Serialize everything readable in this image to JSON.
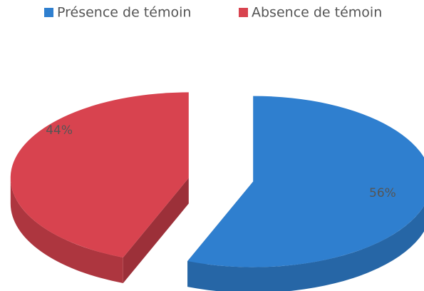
{
  "chart_data": {
    "type": "pie",
    "categories": [
      "Présence de témoin",
      "Absence de témoin"
    ],
    "values": [
      56,
      44
    ],
    "value_labels": [
      "56%",
      "44%"
    ],
    "colors": [
      "#2f7fcf",
      "#d8434f"
    ],
    "legend": "top"
  }
}
